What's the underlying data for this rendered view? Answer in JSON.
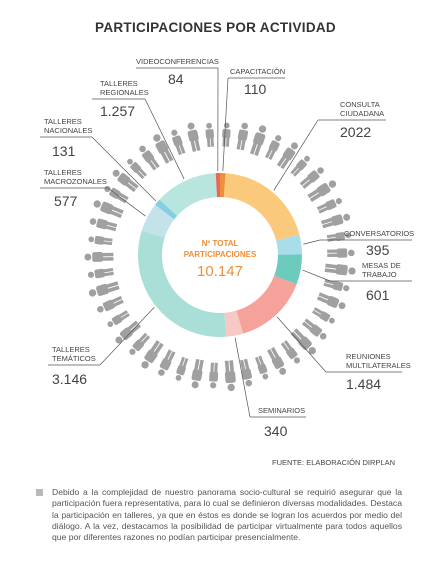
{
  "chart_data": {
    "type": "donut",
    "title": "PARTICIPACIONES POR ACTIVIDAD",
    "center_label": "Nº TOTAL PARTICIPACIONES",
    "total": "10.147",
    "slices": [
      {
        "key": "capacitacion",
        "label": "CAPACITACIÓN",
        "value": 110,
        "value_text": "110",
        "color": "#ee8f3c"
      },
      {
        "key": "consulta",
        "label": "CONSULTA CIUDADANA",
        "value": 2022,
        "value_text": "2022",
        "color": "#fbc97c"
      },
      {
        "key": "conversatorios",
        "label": "CONVERSATORIOS",
        "value": 395,
        "value_text": "395",
        "color": "#a9dde9"
      },
      {
        "key": "mesas",
        "label": "MESAS DE TRABAJO",
        "value": 601,
        "value_text": "601",
        "color": "#6ccbbd"
      },
      {
        "key": "reuniones",
        "label": "REUNIONES MULTILATERALES",
        "value": 1484,
        "value_text": "1.484",
        "color": "#f4a29a"
      },
      {
        "key": "seminarios",
        "label": "SEMINARIOS",
        "value": 340,
        "value_text": "340",
        "color": "#f7c8c4"
      },
      {
        "key": "tematicos",
        "label": "TALLERES TEMÁTICOS",
        "value": 3146,
        "value_text": "3.146",
        "color": "#a9dfd6"
      },
      {
        "key": "macrozonales",
        "label": "TALLERES MACROZONALES",
        "value": 577,
        "value_text": "577",
        "color": "#c3e2ea"
      },
      {
        "key": "nacionales",
        "label": "TALLERES NACIONALES",
        "value": 131,
        "value_text": "131",
        "color": "#86cfe0"
      },
      {
        "key": "regionales",
        "label": "TALLERES REGIONALES",
        "value": 1257,
        "value_text": "1.257",
        "color": "#b8e6df"
      },
      {
        "key": "videoconferencias",
        "label": "VIDEOCONFERENCIAS",
        "value": 84,
        "value_text": "84",
        "color": "#e8675a"
      }
    ]
  },
  "colors": {
    "center_text": "#ee8f3c",
    "figures": "#a0a0a0",
    "leader": "#555555"
  },
  "source": "FUENTE: ELABORACIÓN DIRPLAN",
  "note": "Debido a la complejidad de nuestro panorama socio-cultural se requirió asegurar que la participación fuera representativa, para lo cual se definieron diversas modalidades. Destaca la participación en talleres, ya que en éstos es donde se logran los acuerdos por medio del diálogo. A la vez, destacamos la posibilidad de participar virtualmente para todos aquellos que por diferentes razones no podían participar presencialmente."
}
